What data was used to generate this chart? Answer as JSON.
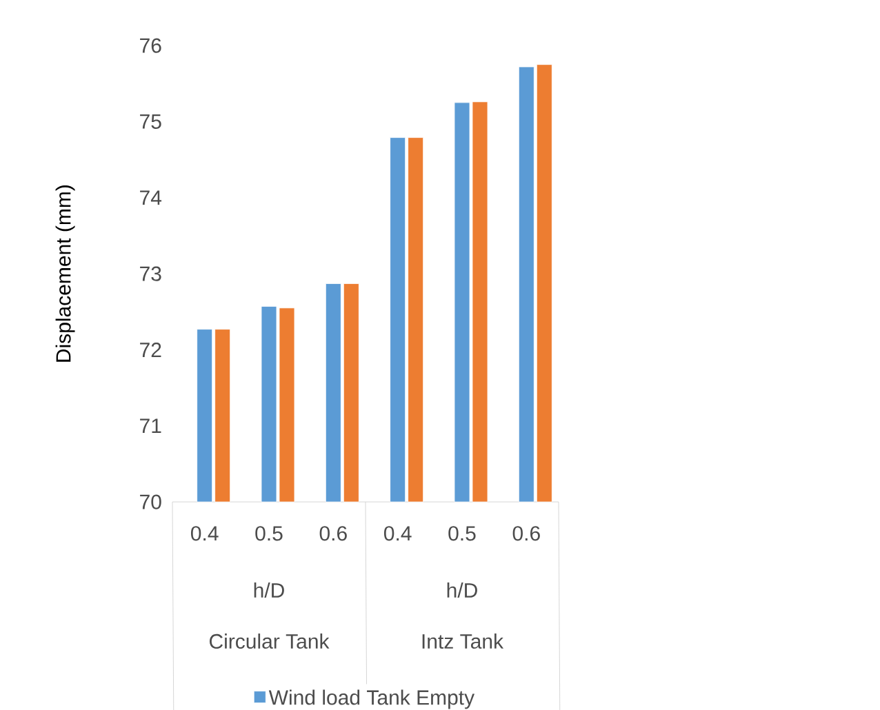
{
  "chart_data": {
    "type": "bar",
    "ylabel": "Displacement (mm)",
    "categories": [
      "0.4",
      "0.5",
      "0.6",
      "0.4",
      "0.5",
      "0.6"
    ],
    "series": [
      {
        "name": "Wind load Tank Empty",
        "color": "#5b9bd5",
        "values": [
          72.27,
          72.57,
          72.87,
          74.79,
          75.25,
          75.72
        ]
      },
      {
        "color": "#ed7d31",
        "values": [
          72.27,
          72.55,
          72.87,
          74.79,
          75.26,
          75.75
        ]
      }
    ],
    "ylim": [
      70,
      76
    ],
    "yticks": [
      70,
      71,
      72,
      73,
      74,
      75,
      76
    ],
    "annotations": [
      "h/D",
      "h/D",
      "Circular Tank",
      "Intz Tank"
    ],
    "legend": "bottom"
  }
}
